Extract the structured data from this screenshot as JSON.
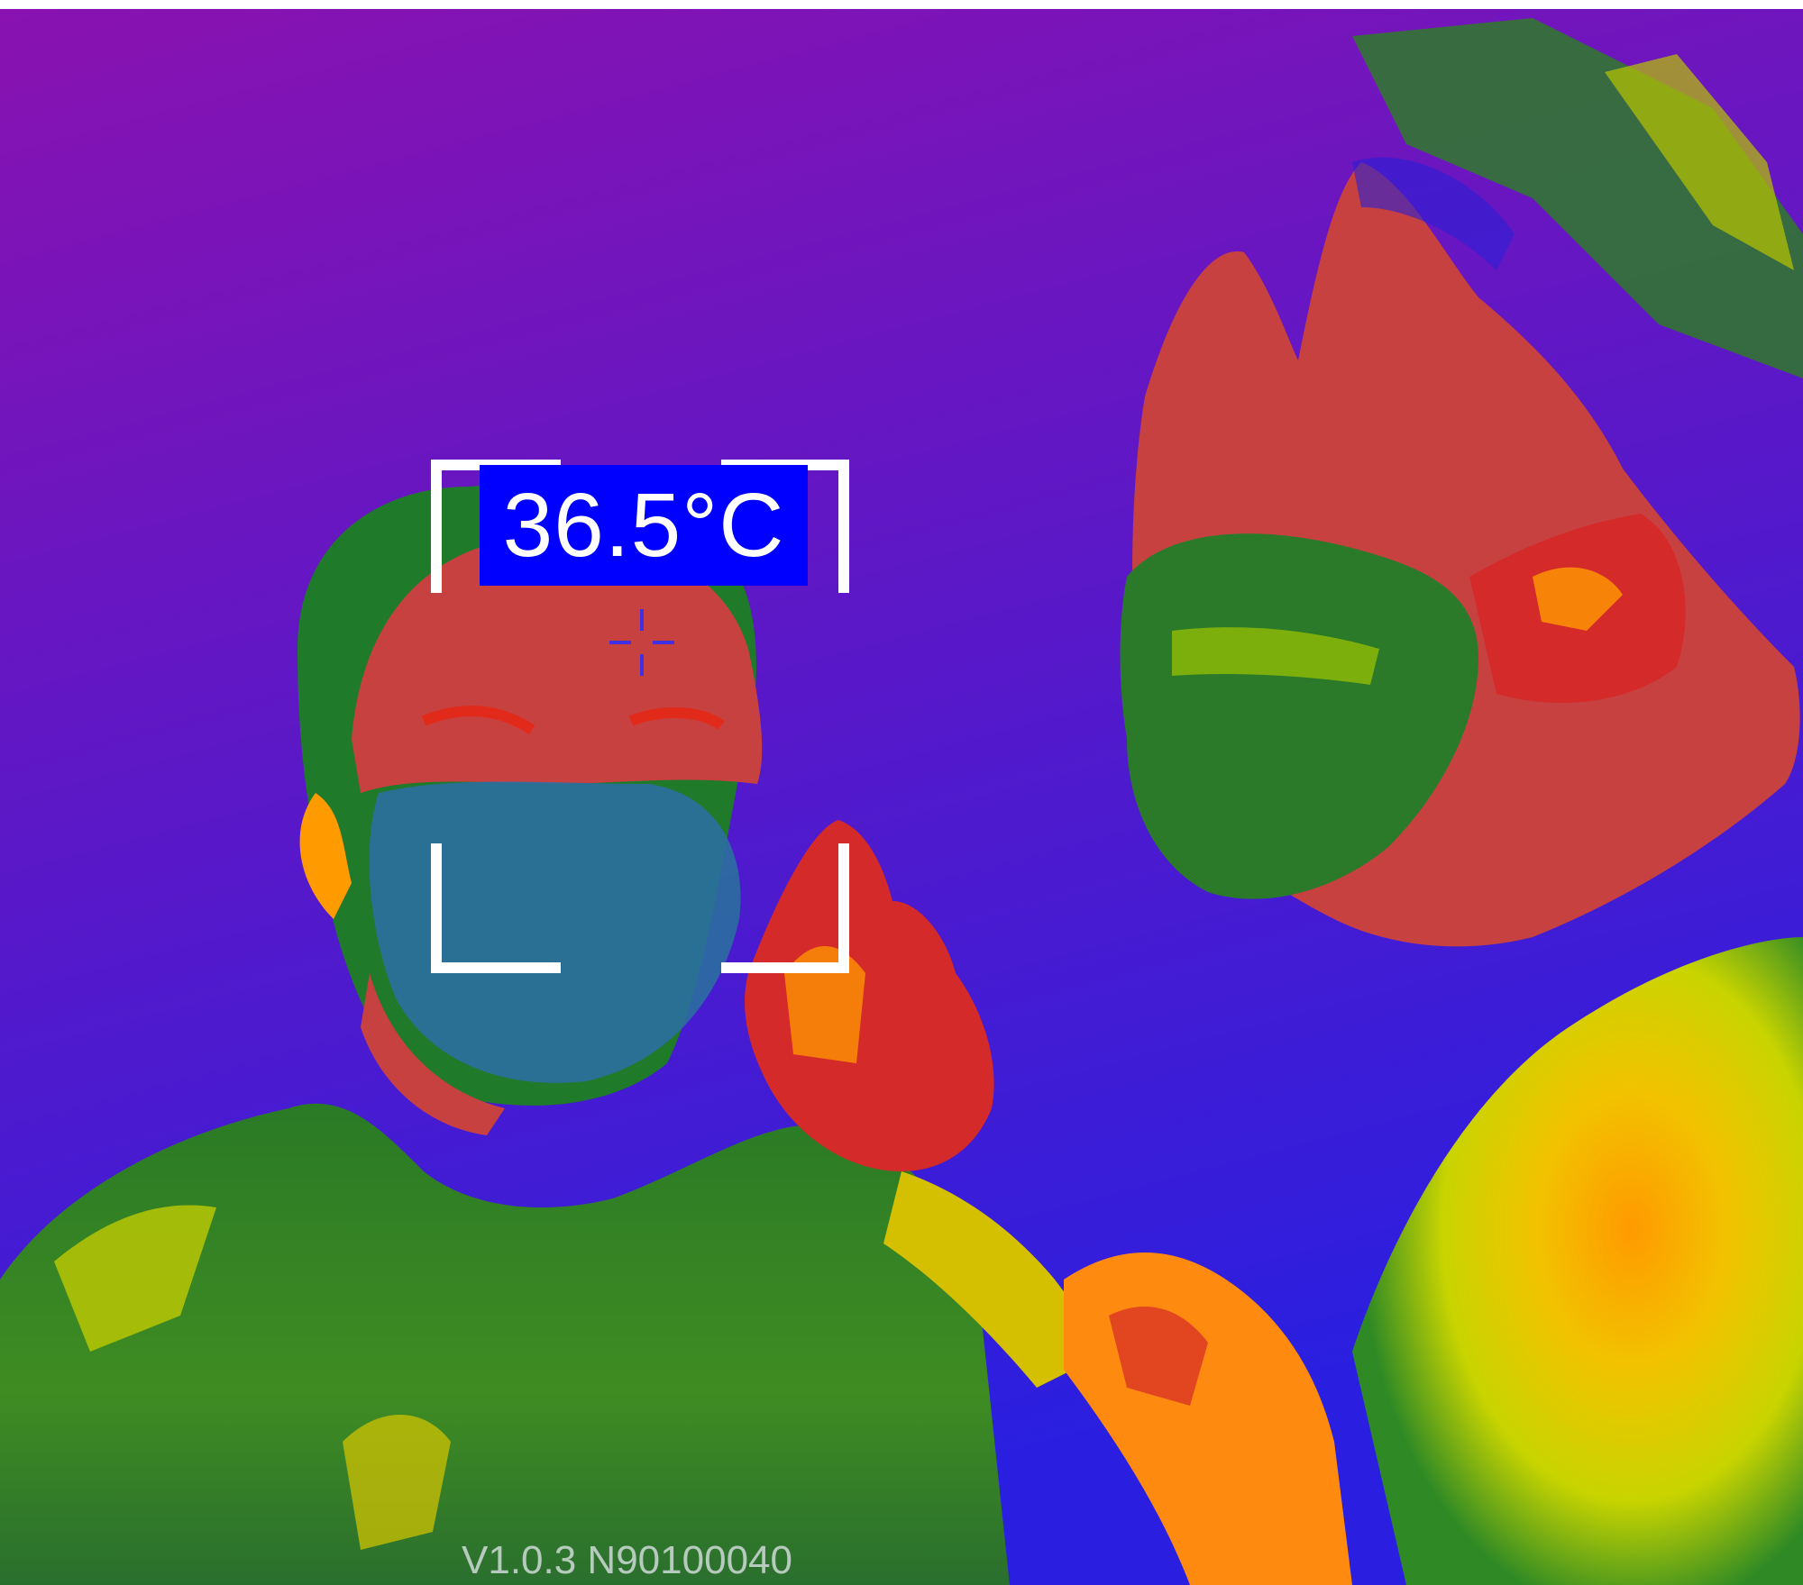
{
  "thermal_view": {
    "palette_colors": [
      "#8a12b0",
      "#3a1fd6",
      "#1b7a2c",
      "#e9e900",
      "#ff9a00",
      "#d52a2a",
      "#c84141"
    ],
    "measurement": {
      "temperature_label": "36.5°C",
      "label_background": "#0000ff",
      "bracket_color": "#ffffff",
      "crosshair_color": "#4030e0"
    },
    "version_text": "V1.0.3 N90100040"
  }
}
